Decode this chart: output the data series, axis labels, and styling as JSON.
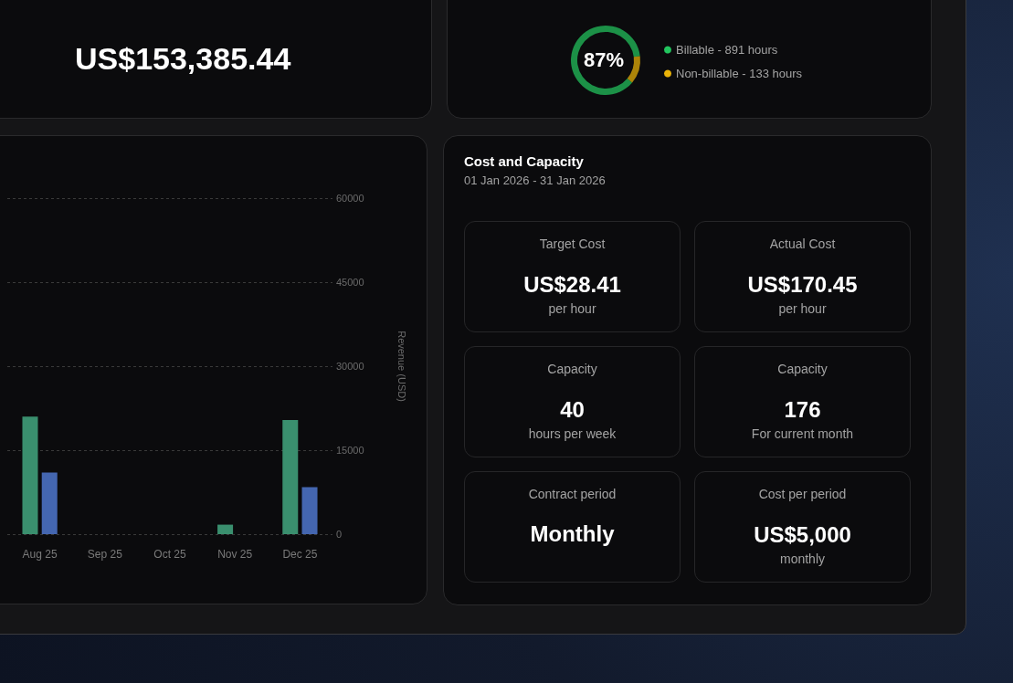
{
  "chart_data": [
    {
      "type": "other",
      "annotations": [
        "US$153,385.44"
      ]
    },
    {
      "type": "donut",
      "categories": [
        "Billable - 891 hours",
        "Non-billable - 133 hours"
      ],
      "values": [
        87,
        13
      ],
      "colors": [
        "#22c55e",
        "#eab308"
      ],
      "annotations": [
        "87%"
      ],
      "legend": "right"
    },
    {
      "type": "bar",
      "categories": [
        "Aug 25",
        "Sep 25",
        "Oct 25",
        "Nov 25",
        "Dec 25"
      ],
      "ylabel": "Revenue (USD)",
      "ylim": [
        0,
        60000
      ],
      "yticks": [
        0,
        15000,
        30000,
        45000,
        60000
      ],
      "grid": "y",
      "legend": false,
      "series": [
        {
          "color": "#3a8f6e",
          "values": [
            21000,
            0,
            0,
            1700,
            20400
          ]
        },
        {
          "color": "#4466b0",
          "values": [
            11000,
            0,
            0,
            0,
            8400
          ]
        }
      ]
    },
    {
      "type": "other",
      "title": "Cost and Capacity",
      "subtitle": "01 Jan 2026 - 31 Jan 2026"
    },
    {
      "type": "other",
      "title": "Target Cost",
      "annotations": [
        "US$28.41",
        "per hour"
      ]
    },
    {
      "type": "other",
      "title": "Actual Cost",
      "annotations": [
        "US$170.45",
        "per hour"
      ]
    },
    {
      "type": "other",
      "title": "Capacity",
      "annotations": [
        "40",
        "hours per week"
      ]
    },
    {
      "type": "other",
      "title": "Capacity",
      "annotations": [
        "176",
        "For current month"
      ]
    },
    {
      "type": "other",
      "title": "Contract period",
      "annotations": [
        "Monthly"
      ]
    },
    {
      "type": "other",
      "title": "Cost per period",
      "annotations": [
        "US$5,000",
        "monthly"
      ]
    }
  ]
}
